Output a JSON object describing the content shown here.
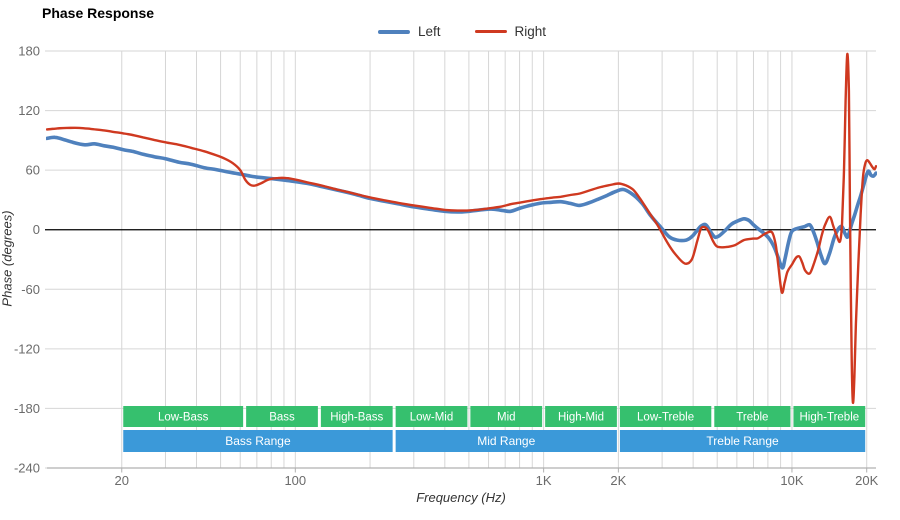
{
  "title": "Phase Response",
  "legend": [
    {
      "label": "Left",
      "color": "#4f81bd"
    },
    {
      "label": "Right",
      "color": "#cf3920"
    }
  ],
  "colors": {
    "grid": "#d6d6d6",
    "axis_line": "#b0b0b0",
    "zero_line": "#000000",
    "tick_text": "#6b6b6b",
    "band_green": "#36c06e",
    "band_blue": "#3b99d9",
    "left_series": "#4f81bd",
    "right_series": "#cf3920"
  },
  "chart_data": {
    "type": "line",
    "title": "Phase Response",
    "x_axis": {
      "label": "Frequency (Hz)",
      "scale": "log",
      "min": 10,
      "max": 21800,
      "major_ticks": [
        {
          "f": 20,
          "label": "20"
        },
        {
          "f": 100,
          "label": "100"
        },
        {
          "f": 1000,
          "label": "1K"
        },
        {
          "f": 2000,
          "label": "2K"
        },
        {
          "f": 10000,
          "label": "10K"
        },
        {
          "f": 20000,
          "label": "20K"
        }
      ],
      "minor_gridlines": [
        20,
        30,
        40,
        50,
        60,
        70,
        80,
        90,
        100,
        200,
        300,
        400,
        500,
        600,
        700,
        800,
        900,
        1000,
        2000,
        3000,
        4000,
        5000,
        6000,
        7000,
        8000,
        9000,
        10000,
        20000
      ]
    },
    "y_axis": {
      "label": "Phase (degrees)",
      "min": -240,
      "max": 180,
      "ticks": [
        180,
        120,
        60,
        0,
        -60,
        -120,
        -180,
        -240
      ],
      "zero_line": true
    },
    "bands": {
      "row1": [
        {
          "label": "Low-Bass",
          "from": 20,
          "to": 62.5
        },
        {
          "label": "Bass",
          "from": 62.5,
          "to": 125
        },
        {
          "label": "High-Bass",
          "from": 125,
          "to": 250
        },
        {
          "label": "Low-Mid",
          "from": 250,
          "to": 500
        },
        {
          "label": "Mid",
          "from": 500,
          "to": 1000
        },
        {
          "label": "High-Mid",
          "from": 1000,
          "to": 2000
        },
        {
          "label": "Low-Treble",
          "from": 2000,
          "to": 4800
        },
        {
          "label": "Treble",
          "from": 4800,
          "to": 10000
        },
        {
          "label": "High-Treble",
          "from": 10000,
          "to": 20000
        }
      ],
      "row2": [
        {
          "label": "Bass Range",
          "from": 20,
          "to": 250
        },
        {
          "label": "Mid Range",
          "from": 250,
          "to": 2000
        },
        {
          "label": "Treble Range",
          "from": 2000,
          "to": 20000
        }
      ]
    },
    "series": [
      {
        "name": "Left",
        "color": "#4f81bd",
        "width": 3.6,
        "points": [
          [
            10,
            92
          ],
          [
            10.8,
            93
          ],
          [
            11.8,
            90.5
          ],
          [
            12.7,
            88
          ],
          [
            14.2,
            85.5
          ],
          [
            15.5,
            86.5
          ],
          [
            17,
            84.5
          ],
          [
            18.5,
            83
          ],
          [
            20.3,
            80.5
          ],
          [
            22,
            79
          ],
          [
            24.4,
            76
          ],
          [
            27,
            73.5
          ],
          [
            30,
            71.5
          ],
          [
            34,
            68
          ],
          [
            38,
            66
          ],
          [
            43,
            62.5
          ],
          [
            48,
            60.5
          ],
          [
            54,
            58
          ],
          [
            60,
            56
          ],
          [
            66,
            54
          ],
          [
            73,
            52.5
          ],
          [
            80,
            51.5
          ],
          [
            90,
            50
          ],
          [
            100,
            48.5
          ],
          [
            115,
            46
          ],
          [
            130,
            43
          ],
          [
            150,
            39.5
          ],
          [
            175,
            35.5
          ],
          [
            200,
            31.5
          ],
          [
            230,
            28.5
          ],
          [
            260,
            26
          ],
          [
            300,
            23
          ],
          [
            350,
            20.5
          ],
          [
            400,
            18.5
          ],
          [
            450,
            17.8
          ],
          [
            500,
            18.5
          ],
          [
            610,
            20.8
          ],
          [
            680,
            19.5
          ],
          [
            737,
            18.5
          ],
          [
            810,
            22
          ],
          [
            900,
            25
          ],
          [
            975,
            26.8
          ],
          [
            1060,
            27.5
          ],
          [
            1170,
            28.2
          ],
          [
            1280,
            26.5
          ],
          [
            1390,
            24.5
          ],
          [
            1500,
            26.5
          ],
          [
            1650,
            30.5
          ],
          [
            1800,
            34.5
          ],
          [
            1950,
            38.5
          ],
          [
            2100,
            40.5
          ],
          [
            2300,
            35
          ],
          [
            2500,
            26
          ],
          [
            2700,
            14
          ],
          [
            2950,
            3
          ],
          [
            3200,
            -7
          ],
          [
            3450,
            -10.5
          ],
          [
            3750,
            -10.5
          ],
          [
            3950,
            -7
          ],
          [
            4100,
            -2.5
          ],
          [
            4300,
            3.5
          ],
          [
            4500,
            5
          ],
          [
            4700,
            -2
          ],
          [
            4900,
            -7.5
          ],
          [
            5100,
            -6
          ],
          [
            5400,
            -0.5
          ],
          [
            5700,
            5.5
          ],
          [
            6000,
            8.5
          ],
          [
            6400,
            11
          ],
          [
            6700,
            9.5
          ],
          [
            7000,
            5
          ],
          [
            7300,
            1
          ],
          [
            7700,
            -3.5
          ],
          [
            8100,
            -9
          ],
          [
            8500,
            -18
          ],
          [
            8800,
            -28
          ],
          [
            9150,
            -38.5
          ],
          [
            9400,
            -28
          ],
          [
            9700,
            -12
          ],
          [
            10000,
            -1.5
          ],
          [
            10600,
            1.5
          ],
          [
            11200,
            3
          ],
          [
            11800,
            5
          ],
          [
            12200,
            -2
          ],
          [
            12600,
            -12
          ],
          [
            13100,
            -26
          ],
          [
            13600,
            -34
          ],
          [
            14200,
            -23
          ],
          [
            14800,
            -8
          ],
          [
            15400,
            1
          ],
          [
            15900,
            3
          ],
          [
            16300,
            -3
          ],
          [
            16700,
            -7.5
          ],
          [
            17000,
            -3
          ],
          [
            17400,
            6
          ],
          [
            17900,
            15
          ],
          [
            18400,
            25
          ],
          [
            18900,
            34
          ],
          [
            19400,
            44
          ],
          [
            19800,
            52
          ],
          [
            20300,
            59
          ],
          [
            20800,
            55
          ],
          [
            21300,
            54
          ],
          [
            21800,
            57
          ]
        ]
      },
      {
        "name": "Right",
        "color": "#cf3920",
        "width": 2.4,
        "points": [
          [
            10,
            101
          ],
          [
            11,
            102
          ],
          [
            12,
            102.5
          ],
          [
            13.5,
            102.5
          ],
          [
            15,
            101.5
          ],
          [
            17,
            100
          ],
          [
            18.5,
            98.5
          ],
          [
            20.3,
            97
          ],
          [
            22.5,
            95
          ],
          [
            24.4,
            93
          ],
          [
            27,
            90.5
          ],
          [
            30,
            88
          ],
          [
            34,
            85.5
          ],
          [
            38,
            82.5
          ],
          [
            43,
            79
          ],
          [
            48,
            75
          ],
          [
            52,
            71.5
          ],
          [
            56,
            67
          ],
          [
            60,
            60
          ],
          [
            63,
            50
          ],
          [
            66,
            45
          ],
          [
            69,
            44.5
          ],
          [
            73,
            47
          ],
          [
            78,
            50.5
          ],
          [
            85,
            52
          ],
          [
            92,
            52
          ],
          [
            100,
            50.5
          ],
          [
            115,
            47
          ],
          [
            130,
            44
          ],
          [
            150,
            40
          ],
          [
            175,
            36
          ],
          [
            200,
            32.5
          ],
          [
            230,
            29.5
          ],
          [
            260,
            27
          ],
          [
            300,
            24.5
          ],
          [
            350,
            22
          ],
          [
            400,
            20
          ],
          [
            450,
            19.3
          ],
          [
            500,
            19.5
          ],
          [
            560,
            20.5
          ],
          [
            620,
            22
          ],
          [
            680,
            23.5
          ],
          [
            740,
            25.8
          ],
          [
            810,
            27.5
          ],
          [
            900,
            29.5
          ],
          [
            975,
            30.8
          ],
          [
            1060,
            32
          ],
          [
            1170,
            33.2
          ],
          [
            1280,
            35
          ],
          [
            1400,
            36.5
          ],
          [
            1550,
            40
          ],
          [
            1700,
            43
          ],
          [
            1850,
            45
          ],
          [
            2000,
            46.5
          ],
          [
            2150,
            44.5
          ],
          [
            2300,
            40
          ],
          [
            2450,
            31
          ],
          [
            2650,
            18
          ],
          [
            2900,
            3
          ],
          [
            3150,
            -13
          ],
          [
            3400,
            -25
          ],
          [
            3700,
            -34
          ],
          [
            3950,
            -30
          ],
          [
            4150,
            -12
          ],
          [
            4300,
            1
          ],
          [
            4450,
            2.5
          ],
          [
            4600,
            -1
          ],
          [
            4800,
            -11
          ],
          [
            5000,
            -17
          ],
          [
            5400,
            -17.5
          ],
          [
            5900,
            -15.5
          ],
          [
            6400,
            -10.5
          ],
          [
            6900,
            -9
          ],
          [
            7300,
            -8.5
          ],
          [
            7800,
            -4
          ],
          [
            8300,
            -2.5
          ],
          [
            8600,
            -15
          ],
          [
            8800,
            -35
          ],
          [
            9100,
            -63
          ],
          [
            9350,
            -53
          ],
          [
            9600,
            -42
          ],
          [
            10000,
            -35
          ],
          [
            10400,
            -28
          ],
          [
            10700,
            -27
          ],
          [
            11000,
            -33
          ],
          [
            11300,
            -41
          ],
          [
            11800,
            -44
          ],
          [
            12300,
            -33
          ],
          [
            12800,
            -19
          ],
          [
            13200,
            -5
          ],
          [
            13600,
            5
          ],
          [
            14200,
            13
          ],
          [
            14700,
            3
          ],
          [
            15100,
            -5
          ],
          [
            15600,
            -12
          ],
          [
            15900,
            5
          ],
          [
            16200,
            60
          ],
          [
            16450,
            130
          ],
          [
            16700,
            177
          ],
          [
            16950,
            140
          ],
          [
            17100,
            40
          ],
          [
            17250,
            -60
          ],
          [
            17400,
            -130
          ],
          [
            17600,
            -174
          ],
          [
            17850,
            -148
          ],
          [
            18100,
            -95
          ],
          [
            18500,
            -35
          ],
          [
            18900,
            15
          ],
          [
            19300,
            52
          ],
          [
            19700,
            66
          ],
          [
            20100,
            70
          ],
          [
            20600,
            67
          ],
          [
            21100,
            63
          ],
          [
            21500,
            61
          ],
          [
            21800,
            64
          ]
        ]
      }
    ]
  }
}
